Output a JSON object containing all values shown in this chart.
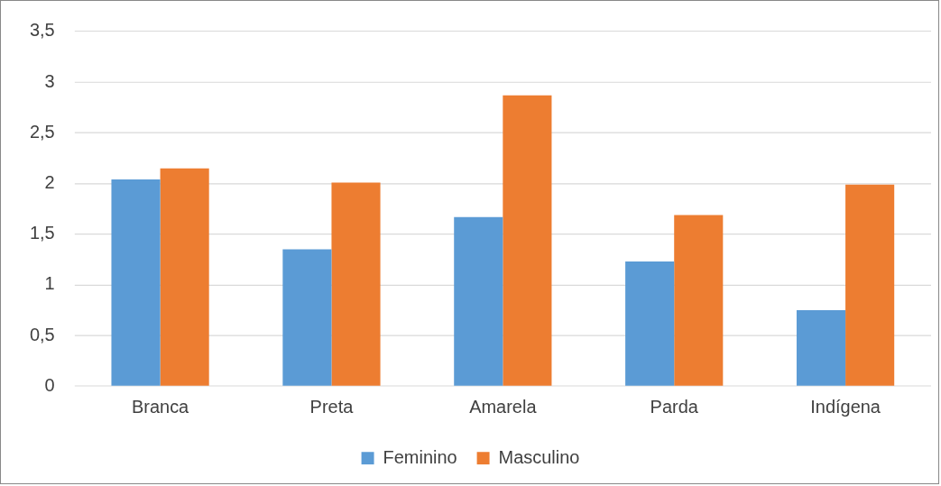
{
  "chart_data": {
    "type": "bar",
    "categories": [
      "Branca",
      "Preta",
      "Amarela",
      "Parda",
      "Indígena"
    ],
    "series": [
      {
        "name": "Feminino",
        "color": "#5b9bd5",
        "values": [
          2.04,
          1.35,
          1.67,
          1.23,
          0.75
        ]
      },
      {
        "name": "Masculino",
        "color": "#ed7d31",
        "values": [
          2.15,
          2.01,
          2.87,
          1.69,
          1.99
        ]
      }
    ],
    "ylim": [
      0,
      3.5
    ],
    "yticks": [
      0,
      {
        "value": 0.5,
        "label": "0,5"
      },
      1,
      {
        "value": 1.5,
        "label": "1,5"
      },
      2,
      {
        "value": 2.5,
        "label": "2,5"
      },
      3,
      {
        "value": 3.5,
        "label": "3,5"
      }
    ],
    "grid": "y",
    "legend": "bottom"
  }
}
